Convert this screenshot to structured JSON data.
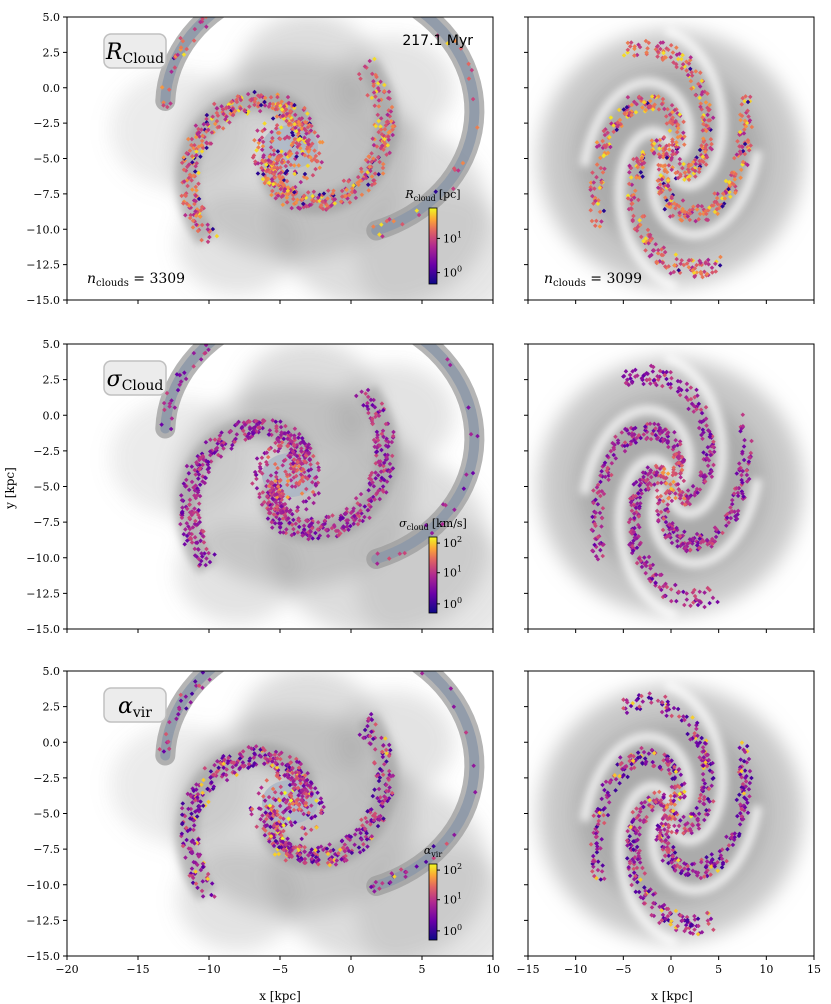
{
  "chart_data": {
    "type": "scatter",
    "time_label": "217.1 Myr",
    "xlabel": "x [kpc]",
    "ylabel": "y [kpc]",
    "left_xlim": [
      -20,
      10
    ],
    "right_xlim": [
      -15,
      15
    ],
    "ylim": [
      -15,
      5
    ],
    "left_xticks": [
      "−20",
      "−15",
      "−10",
      "−5",
      "0",
      "5",
      "10"
    ],
    "right_xticks": [
      "−15",
      "−10",
      "−5",
      "0",
      "5",
      "10",
      "15"
    ],
    "yticks": [
      "5.0",
      "2.5",
      "0.0",
      "−2.5",
      "−5.0",
      "−7.5",
      "−10.0",
      "−12.5",
      "−15.0"
    ],
    "colormap": "plasma",
    "panels": [
      {
        "row": "R",
        "badge_symbol": "R",
        "badge_sub": "Cloud",
        "n_clouds_left": "3309",
        "n_clouds_right": "3099",
        "colorbar_symbol": "R",
        "colorbar_sub": "cloud",
        "colorbar_unit": "[pc]",
        "colorbar_ticks": [
          {
            "base": "10",
            "exp": "1"
          },
          {
            "base": "10",
            "exp": "0"
          }
        ]
      },
      {
        "row": "sigma",
        "badge_symbol": "σ",
        "badge_sub": "Cloud",
        "colorbar_symbol": "σ",
        "colorbar_sub": "cloud",
        "colorbar_unit": "[km/s]",
        "colorbar_ticks": [
          {
            "base": "10",
            "exp": "2"
          },
          {
            "base": "10",
            "exp": "1"
          },
          {
            "base": "10",
            "exp": "0"
          }
        ]
      },
      {
        "row": "alpha",
        "badge_symbol": "α",
        "badge_sub": "vir",
        "colorbar_symbol": "α",
        "colorbar_sub": "vir",
        "colorbar_unit": "",
        "colorbar_ticks": [
          {
            "base": "10",
            "exp": "2"
          },
          {
            "base": "10",
            "exp": "1"
          },
          {
            "base": "10",
            "exp": "0"
          }
        ]
      }
    ],
    "colors": {
      "plasma": [
        "#0d0887",
        "#6a00a8",
        "#b12a90",
        "#e16462",
        "#fca636",
        "#f0f921"
      ],
      "gas": "#9a9a9a",
      "ring": "#8c98a8"
    }
  }
}
